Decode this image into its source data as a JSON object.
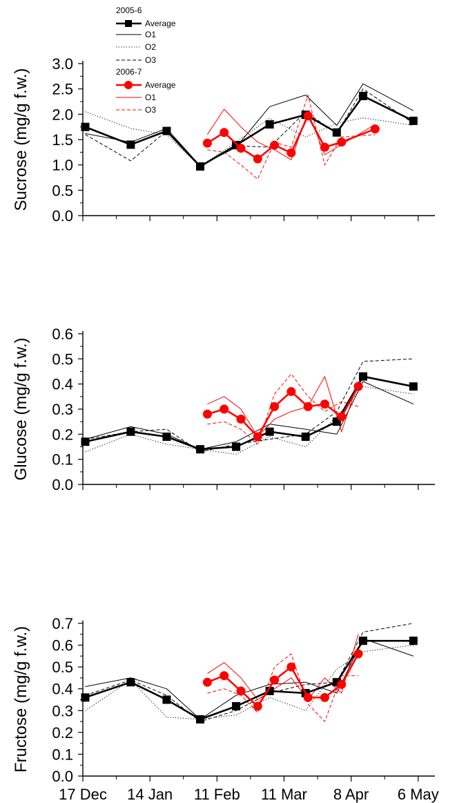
{
  "legend": {
    "group1_title": "2005-6",
    "group1_items": [
      "Average",
      "O1",
      "O2",
      "O3"
    ],
    "group2_title": "2006-7",
    "group2_items": [
      "Average",
      "O1",
      "O3"
    ]
  },
  "colors": {
    "season_2005_6": "#000000",
    "season_2006_7": "#ff0000"
  },
  "chart_data": [
    {
      "type": "line",
      "ylabel": "Sucrose (mg/g f.w.)",
      "xlabel": "",
      "ylim": [
        0,
        3.0
      ],
      "yticks": [
        "0.0",
        "0.5",
        "1.0",
        "1.5",
        "2.0",
        "2.5",
        "3.0"
      ],
      "xlim": [
        "17 Dec",
        "13 May"
      ],
      "x_tick_labels": [
        "17 Dec",
        "14 Jan",
        "11 Feb",
        "11 Mar",
        "8 Apr",
        "6 May"
      ],
      "series": [
        {
          "name": "Average",
          "season": "2005-6",
          "style": "black-thick-square",
          "x": [
            "18 Dec",
            "6 Jan",
            "21 Jan",
            "4 Feb",
            "19 Feb",
            "5 Mar",
            "20 Mar",
            "2 Apr",
            "13 Apr",
            "4 May"
          ],
          "y": [
            1.75,
            1.4,
            1.67,
            0.97,
            1.39,
            1.8,
            1.99,
            1.64,
            2.36,
            1.87
          ]
        },
        {
          "name": "O1",
          "season": "2005-6",
          "style": "black-thin-solid",
          "x": [
            "18 Dec",
            "6 Jan",
            "21 Jan",
            "4 Feb",
            "19 Feb",
            "5 Mar",
            "20 Mar",
            "2 Apr",
            "13 Apr",
            "4 May"
          ],
          "y": [
            1.62,
            1.45,
            1.72,
            0.98,
            1.35,
            2.15,
            2.38,
            1.78,
            2.6,
            2.07
          ]
        },
        {
          "name": "O2",
          "season": "2005-6",
          "style": "black-thin-dotted",
          "x": [
            "18 Dec",
            "6 Jan",
            "21 Jan",
            "4 Feb",
            "19 Feb",
            "5 Mar",
            "20 Mar",
            "2 Apr",
            "13 Apr",
            "4 May"
          ],
          "y": [
            2.05,
            1.72,
            1.6,
            0.97,
            1.45,
            1.92,
            1.55,
            1.82,
            1.93,
            1.78
          ]
        },
        {
          "name": "O3",
          "season": "2005-6",
          "style": "black-thin-dashed",
          "x": [
            "18 Dec",
            "6 Jan",
            "21 Jan",
            "4 Feb",
            "19 Feb",
            "5 Mar",
            "20 Mar",
            "2 Apr",
            "13 Apr",
            "4 May"
          ],
          "y": [
            1.6,
            1.08,
            1.67,
            0.99,
            1.38,
            1.35,
            2.05,
            1.62,
            2.5,
            1.82
          ]
        },
        {
          "name": "Average",
          "season": "2006-7",
          "style": "red-thick-circle",
          "x": [
            "7 Feb",
            "14 Feb",
            "21 Feb",
            "28 Feb",
            "7 Mar",
            "14 Mar",
            "21 Mar",
            "28 Mar",
            "4 Apr",
            "11 Apr",
            "18 Apr"
          ],
          "y": [
            1.43,
            1.64,
            1.33,
            1.12,
            1.39,
            1.24,
            1.97,
            1.35,
            1.45,
            null,
            1.71
          ]
        },
        {
          "name": "O1",
          "season": "2006-7",
          "style": "red-thin-solid",
          "x": [
            "7 Feb",
            "14 Feb",
            "21 Feb",
            "28 Feb",
            "7 Mar",
            "14 Mar",
            "21 Mar",
            "28 Mar",
            "4 Apr",
            "11 Apr",
            "18 Apr"
          ],
          "y": [
            1.6,
            2.1,
            1.75,
            1.45,
            1.3,
            1.1,
            2.05,
            1.2,
            1.4,
            null,
            1.8
          ]
        },
        {
          "name": "O3",
          "season": "2006-7",
          "style": "red-thin-dashed",
          "x": [
            "7 Feb",
            "14 Feb",
            "21 Feb",
            "28 Feb",
            "7 Mar",
            "14 Mar",
            "21 Mar",
            "28 Mar",
            "4 Apr",
            "11 Apr",
            "18 Apr"
          ],
          "y": [
            1.3,
            1.25,
            1.0,
            0.72,
            1.45,
            1.35,
            2.38,
            1.0,
            1.55,
            null,
            1.6
          ]
        }
      ]
    },
    {
      "type": "line",
      "ylabel": "Glucose (mg/g f.w.)",
      "xlabel": "",
      "ylim": [
        0,
        0.6
      ],
      "yticks": [
        "0.0",
        "0.1",
        "0.2",
        "0.3",
        "0.4",
        "0.5",
        "0.6"
      ],
      "xlim": [
        "17 Dec",
        "13 May"
      ],
      "x_tick_labels": [
        "17 Dec",
        "14 Jan",
        "11 Feb",
        "11 Mar",
        "8 Apr",
        "6 May"
      ],
      "series": [
        {
          "name": "Average",
          "season": "2005-6",
          "style": "black-thick-square",
          "x": [
            "18 Dec",
            "6 Jan",
            "21 Jan",
            "4 Feb",
            "19 Feb",
            "5 Mar",
            "20 Mar",
            "2 Apr",
            "13 Apr",
            "4 May"
          ],
          "y": [
            0.17,
            0.21,
            0.19,
            0.14,
            0.15,
            0.21,
            0.19,
            0.25,
            0.43,
            0.39
          ]
        },
        {
          "name": "O1",
          "season": "2005-6",
          "style": "black-thin-solid",
          "x": [
            "18 Dec",
            "6 Jan",
            "21 Jan",
            "4 Feb",
            "19 Feb",
            "5 Mar",
            "20 Mar",
            "2 Apr",
            "13 Apr",
            "4 May"
          ],
          "y": [
            0.18,
            0.23,
            0.2,
            0.14,
            0.17,
            0.24,
            0.22,
            0.2,
            0.41,
            0.32
          ]
        },
        {
          "name": "O2",
          "season": "2005-6",
          "style": "black-thin-dotted",
          "x": [
            "18 Dec",
            "6 Jan",
            "21 Jan",
            "4 Feb",
            "19 Feb",
            "5 Mar",
            "20 Mar",
            "2 Apr",
            "13 Apr",
            "4 May"
          ],
          "y": [
            0.13,
            0.2,
            0.16,
            0.14,
            0.12,
            0.19,
            0.15,
            0.27,
            0.39,
            0.36
          ]
        },
        {
          "name": "O3",
          "season": "2005-6",
          "style": "black-thin-dashed",
          "x": [
            "18 Dec",
            "6 Jan",
            "21 Jan",
            "4 Feb",
            "19 Feb",
            "5 Mar",
            "20 Mar",
            "2 Apr",
            "13 Apr",
            "4 May"
          ],
          "y": [
            0.18,
            0.21,
            0.22,
            0.13,
            0.16,
            0.18,
            0.2,
            0.29,
            0.49,
            0.5
          ]
        },
        {
          "name": "Average",
          "season": "2006-7",
          "style": "red-thick-circle",
          "x": [
            "7 Feb",
            "14 Feb",
            "21 Feb",
            "28 Feb",
            "7 Mar",
            "14 Mar",
            "21 Mar",
            "28 Mar",
            "4 Apr",
            "11 Apr",
            "18 Apr"
          ],
          "y": [
            0.28,
            0.3,
            0.26,
            0.19,
            0.31,
            0.37,
            0.31,
            0.32,
            0.27,
            0.39,
            null
          ]
        },
        {
          "name": "O1",
          "season": "2006-7",
          "style": "red-thin-solid",
          "x": [
            "7 Feb",
            "14 Feb",
            "21 Feb",
            "28 Feb",
            "7 Mar",
            "14 Mar",
            "21 Mar",
            "28 Mar",
            "4 Apr",
            "11 Apr",
            "18 Apr"
          ],
          "y": [
            0.32,
            0.35,
            0.3,
            0.19,
            0.26,
            0.29,
            0.31,
            0.43,
            0.21,
            0.41,
            null
          ]
        },
        {
          "name": "O3",
          "season": "2006-7",
          "style": "red-thin-dashed",
          "x": [
            "7 Feb",
            "14 Feb",
            "21 Feb",
            "28 Feb",
            "7 Mar",
            "14 Mar",
            "21 Mar",
            "28 Mar",
            "4 Apr",
            "11 Apr",
            "18 Apr"
          ],
          "y": [
            0.24,
            0.25,
            0.22,
            0.16,
            0.36,
            0.44,
            0.35,
            0.29,
            0.33,
            0.31,
            null
          ]
        }
      ]
    },
    {
      "type": "line",
      "ylabel": "Fructose (mg/g f.w.)",
      "xlabel": "",
      "ylim": [
        0,
        0.7
      ],
      "yticks": [
        "0.0",
        "0.1",
        "0.2",
        "0.3",
        "0.4",
        "0.5",
        "0.6",
        "0.7"
      ],
      "xlim": [
        "17 Dec",
        "13 May"
      ],
      "x_tick_labels": [
        "17 Dec",
        "14 Jan",
        "11 Feb",
        "11 Mar",
        "8 Apr",
        "6 May"
      ],
      "series": [
        {
          "name": "Average",
          "season": "2005-6",
          "style": "black-thick-square",
          "x": [
            "18 Dec",
            "6 Jan",
            "21 Jan",
            "4 Feb",
            "19 Feb",
            "5 Mar",
            "20 Mar",
            "2 Apr",
            "13 Apr",
            "4 May"
          ],
          "y": [
            0.36,
            0.43,
            0.35,
            0.26,
            0.32,
            0.39,
            0.38,
            0.43,
            0.62,
            0.62
          ]
        },
        {
          "name": "O1",
          "season": "2005-6",
          "style": "black-thin-solid",
          "x": [
            "18 Dec",
            "6 Jan",
            "21 Jan",
            "4 Feb",
            "19 Feb",
            "5 Mar",
            "20 Mar",
            "2 Apr",
            "13 Apr",
            "4 May"
          ],
          "y": [
            0.41,
            0.45,
            0.4,
            0.26,
            0.37,
            0.42,
            0.43,
            0.38,
            0.63,
            0.55
          ]
        },
        {
          "name": "O2",
          "season": "2005-6",
          "style": "black-thin-dotted",
          "x": [
            "18 Dec",
            "6 Jan",
            "21 Jan",
            "4 Feb",
            "19 Feb",
            "5 Mar",
            "20 Mar",
            "2 Apr",
            "13 Apr",
            "4 May"
          ],
          "y": [
            0.3,
            0.44,
            0.27,
            0.26,
            0.28,
            0.36,
            0.3,
            0.49,
            0.57,
            0.6
          ]
        },
        {
          "name": "O3",
          "season": "2005-6",
          "style": "black-thin-dashed",
          "x": [
            "18 Dec",
            "6 Jan",
            "21 Jan",
            "4 Feb",
            "19 Feb",
            "5 Mar",
            "20 Mar",
            "2 Apr",
            "13 Apr",
            "4 May"
          ],
          "y": [
            0.37,
            0.44,
            0.37,
            0.25,
            0.3,
            0.38,
            0.42,
            0.43,
            0.66,
            0.7
          ]
        },
        {
          "name": "Average",
          "season": "2006-7",
          "style": "red-thick-circle",
          "x": [
            "7 Feb",
            "14 Feb",
            "21 Feb",
            "28 Feb",
            "7 Mar",
            "14 Mar",
            "21 Mar",
            "28 Mar",
            "4 Apr",
            "11 Apr",
            "18 Apr"
          ],
          "y": [
            0.43,
            0.46,
            0.39,
            0.32,
            0.44,
            0.5,
            0.36,
            0.36,
            0.42,
            0.56,
            null
          ]
        },
        {
          "name": "O1",
          "season": "2006-7",
          "style": "red-thin-solid",
          "x": [
            "7 Feb",
            "14 Feb",
            "21 Feb",
            "28 Feb",
            "7 Mar",
            "14 Mar",
            "21 Mar",
            "28 Mar",
            "4 Apr",
            "11 Apr",
            "18 Apr"
          ],
          "y": [
            0.47,
            0.52,
            0.45,
            0.35,
            0.4,
            0.45,
            0.35,
            0.45,
            0.38,
            0.65,
            null
          ]
        },
        {
          "name": "O3",
          "season": "2006-7",
          "style": "red-thin-dashed",
          "x": [
            "7 Feb",
            "14 Feb",
            "21 Feb",
            "28 Feb",
            "7 Mar",
            "14 Mar",
            "21 Mar",
            "28 Mar",
            "4 Apr",
            "11 Apr",
            "18 Apr"
          ],
          "y": [
            0.38,
            0.4,
            0.37,
            0.29,
            0.5,
            0.56,
            0.33,
            0.25,
            0.46,
            0.46,
            null
          ]
        }
      ]
    }
  ]
}
